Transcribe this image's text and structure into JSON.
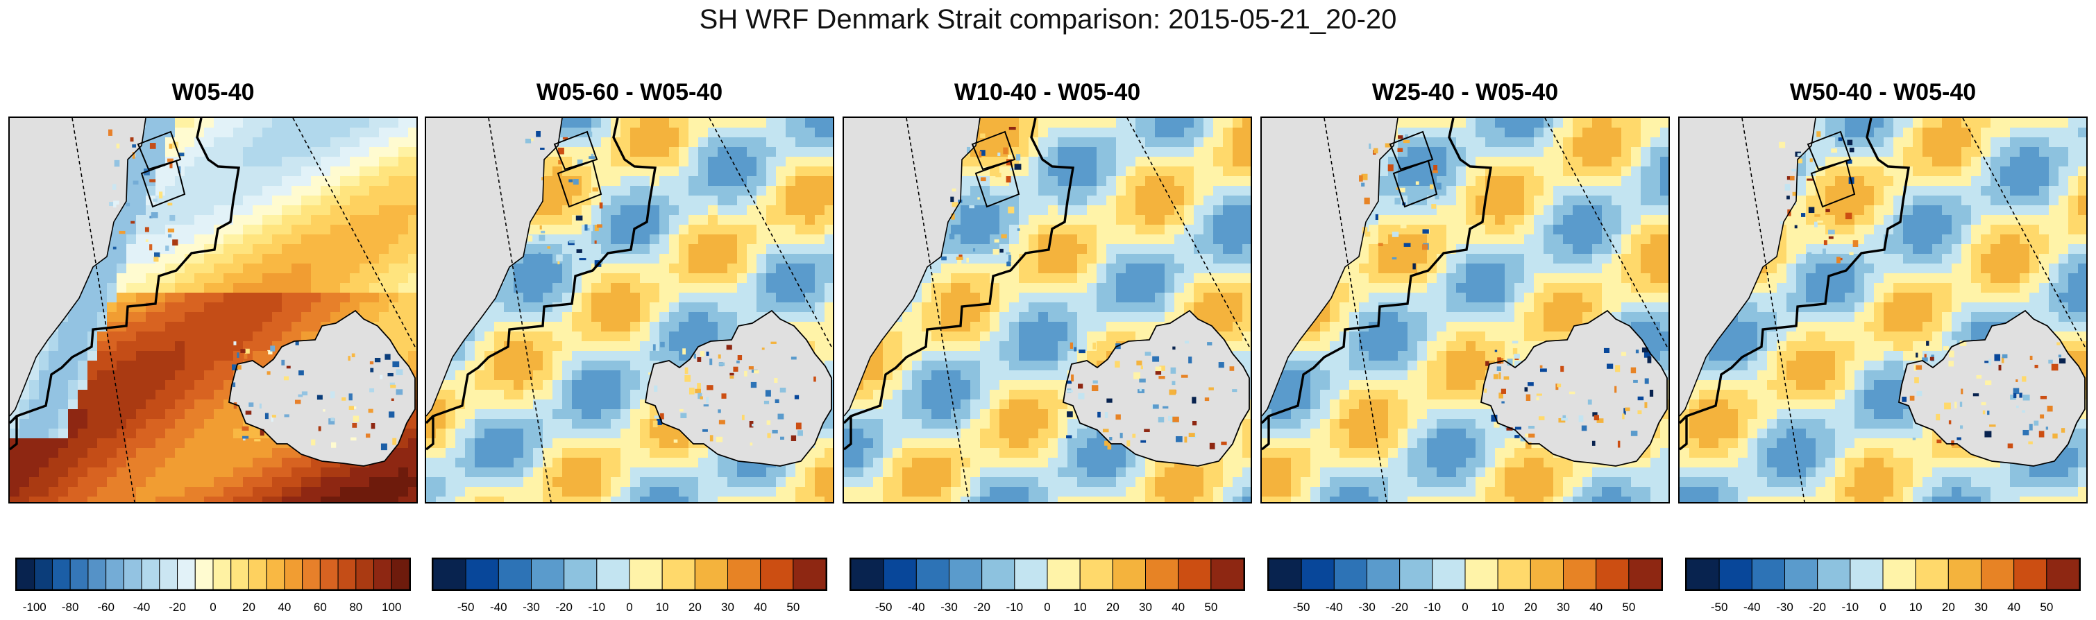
{
  "figure_title": "SH WRF Denmark Strait comparison: 2015-05-21_20-20",
  "chart_data": [
    {
      "type": "heatmap",
      "title": "W05-40",
      "colorbar": {
        "ticks": [
          "-100",
          "-80",
          "-60",
          "-40",
          "-20",
          "0",
          "20",
          "40",
          "60",
          "80",
          "100"
        ],
        "range": [
          -110,
          110
        ],
        "n_bins": 22
      },
      "field_character": "mostly positive values over sea south-west of Iceland, negative values inside the Greenland coastal area"
    },
    {
      "type": "heatmap",
      "title": "W05-60 - W05-40",
      "colorbar": {
        "ticks": [
          "-50",
          "-40",
          "-30",
          "-20",
          "-10",
          "0",
          "10",
          "20",
          "30",
          "40",
          "50"
        ],
        "range": [
          -60,
          60
        ],
        "n_bins": 12
      },
      "field_character": "alternating weak positive and negative bands"
    },
    {
      "type": "heatmap",
      "title": "W10-40 - W05-40",
      "colorbar": {
        "ticks": [
          "-50",
          "-40",
          "-30",
          "-20",
          "-10",
          "0",
          "10",
          "20",
          "30",
          "40",
          "50"
        ],
        "range": [
          -60,
          60
        ],
        "n_bins": 12
      },
      "field_character": "alternating weak positive and negative bands"
    },
    {
      "type": "heatmap",
      "title": "W25-40 - W05-40",
      "colorbar": {
        "ticks": [
          "-50",
          "-40",
          "-30",
          "-20",
          "-10",
          "0",
          "10",
          "20",
          "30",
          "40",
          "50"
        ],
        "range": [
          -60,
          60
        ],
        "n_bins": 12
      },
      "field_character": "alternating weak positive and negative bands, strong anomalies near the Iceland coast"
    },
    {
      "type": "heatmap",
      "title": "W50-40 - W05-40",
      "colorbar": {
        "ticks": [
          "-50",
          "-40",
          "-30",
          "-20",
          "-10",
          "0",
          "10",
          "20",
          "30",
          "40",
          "50"
        ],
        "range": [
          -60,
          60
        ],
        "n_bins": 12
      },
      "field_character": "alternating weak positive and negative bands, strong negative anomalies west of Iceland"
    }
  ],
  "colors": {
    "land": "#e0e0e0",
    "palette": [
      "#08234f",
      "#08479a",
      "#2d73b6",
      "#5a9bcc",
      "#8dc2df",
      "#c3e4f1",
      "#fff3a8",
      "#ffd96b",
      "#f4b33d",
      "#e78325",
      "#cc4e12",
      "#8e2712"
    ],
    "palette_fine": [
      "#08234f",
      "#0b3d7a",
      "#1b5ea6",
      "#3577b8",
      "#5592c7",
      "#74acd6",
      "#93c3e2",
      "#b1d8ec",
      "#cbe6f2",
      "#e2f2f8",
      "#fffbd0",
      "#fff2a3",
      "#ffe47e",
      "#fed15f",
      "#f9b843",
      "#f19d32",
      "#e7802a",
      "#d86321",
      "#c44d17",
      "#aa3a12",
      "#8e2712",
      "#6e1b0c"
    ]
  }
}
